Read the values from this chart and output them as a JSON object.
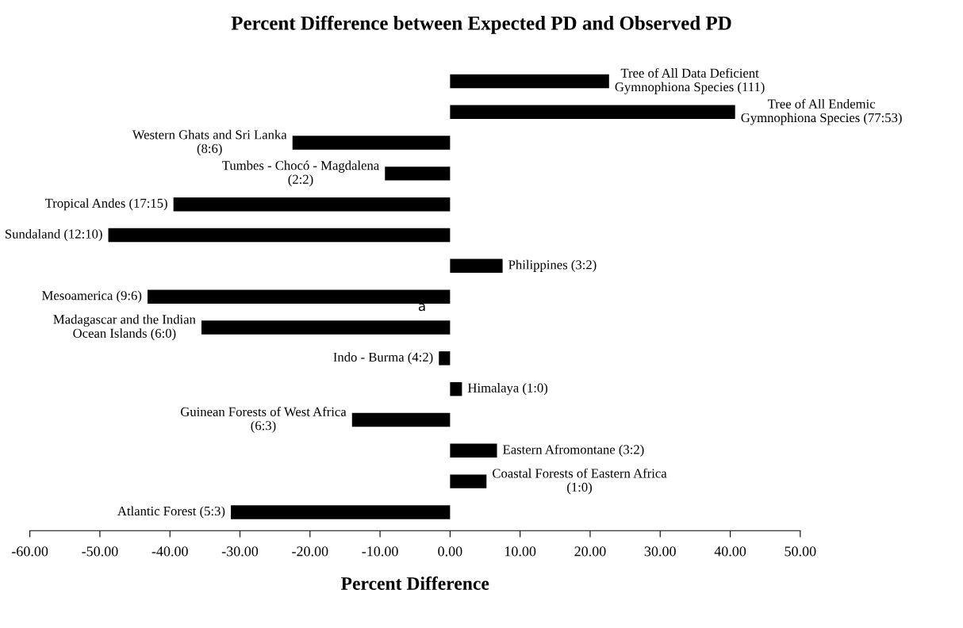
{
  "chart_data": {
    "type": "bar",
    "orientation": "horizontal",
    "title": "Percent Difference between Expected PD and Observed PD",
    "xlabel": "Percent Difference",
    "categories": [
      "Tree of All Data Deficient\nGymnophiona Species (111)",
      "Tree of All Endemic\nGymnophiona Species (77:53)",
      "Western Ghats and Sri Lanka\n(8:6)",
      "Tumbes - Chocó - Magdalena\n(2:2)",
      "Tropical Andes (17:15)",
      "Sundaland (12:10)",
      "Philippines (3:2)",
      "Mesoamerica (9:6)",
      "Madagascar and the Indian\nOcean Islands (6:0)",
      "Indo - Burma (4:2)",
      "Himalaya (1:0)",
      "Guinean Forests of West Africa\n(6:3)",
      "Eastern Afromontane (3:2)",
      "Coastal Forests of Eastern Africa\n(1:0)",
      "Atlantic Forest (5:3)"
    ],
    "values": [
      22.7,
      40.7,
      -22.5,
      -9.3,
      -39.5,
      -48.8,
      7.5,
      -43.2,
      -35.5,
      -1.6,
      1.7,
      -14.0,
      6.7,
      5.2,
      -31.3
    ],
    "color": "#000000",
    "xlim": [
      -60,
      50
    ],
    "xticks": [
      {
        "value": -60,
        "label": "-60.00"
      },
      {
        "value": -50,
        "label": "-50.00"
      },
      {
        "value": -40,
        "label": "-40.00"
      },
      {
        "value": -30,
        "label": "-30.00"
      },
      {
        "value": -20,
        "label": "-20.00"
      },
      {
        "value": -10,
        "label": "-10.00"
      },
      {
        "value": 0,
        "label": "0.00"
      },
      {
        "value": 10,
        "label": "10.00"
      },
      {
        "value": 20,
        "label": "20.00"
      },
      {
        "value": 30,
        "label": "30.00"
      },
      {
        "value": 40,
        "label": "40.00"
      },
      {
        "value": 50,
        "label": "50.00"
      }
    ],
    "annotations": [
      "a"
    ],
    "grid": false,
    "legend": false
  }
}
